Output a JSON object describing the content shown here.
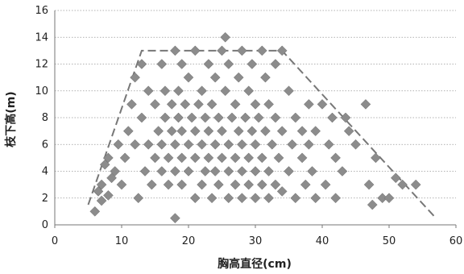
{
  "chart_data": {
    "type": "scatter",
    "xlabel": "胸高直径(cm)",
    "ylabel": "枝下高(m)",
    "xlim": [
      0,
      60
    ],
    "ylim": [
      0,
      16
    ],
    "xticks": [
      "0",
      "10",
      "20",
      "30",
      "40",
      "50",
      "60"
    ],
    "yticks": [
      "0",
      "2",
      "4",
      "6",
      "8",
      "10",
      "12",
      "14",
      "16"
    ],
    "grid": "horizontal dotted",
    "marker": "diamond",
    "marker_color": "#8c8c8c",
    "series": [
      {
        "points": [
          [
            6,
            1
          ],
          [
            6.5,
            2.5
          ],
          [
            7,
            1.8
          ],
          [
            7,
            3
          ],
          [
            7.5,
            4.5
          ],
          [
            8,
            2.2
          ],
          [
            8.5,
            3.5
          ],
          [
            8,
            5
          ],
          [
            9,
            4
          ],
          [
            9.5,
            6
          ],
          [
            10,
            3
          ],
          [
            10.5,
            5
          ],
          [
            11,
            7
          ],
          [
            11.5,
            9
          ],
          [
            12,
            11
          ],
          [
            12.5,
            2
          ],
          [
            12,
            6
          ],
          [
            13,
            8
          ],
          [
            13,
            12
          ],
          [
            13.5,
            4
          ],
          [
            14,
            6
          ],
          [
            14,
            10
          ],
          [
            14.5,
            3
          ],
          [
            15,
            5
          ],
          [
            15,
            9
          ],
          [
            15.5,
            7
          ],
          [
            16,
            4
          ],
          [
            16,
            6
          ],
          [
            16,
            12
          ],
          [
            16.5,
            8
          ],
          [
            16.5,
            10
          ],
          [
            17,
            3
          ],
          [
            17,
            5
          ],
          [
            17.5,
            7
          ],
          [
            17.5,
            9
          ],
          [
            18,
            0.5
          ],
          [
            18,
            4
          ],
          [
            18,
            6
          ],
          [
            18,
            13
          ],
          [
            18.5,
            8
          ],
          [
            18.5,
            10
          ],
          [
            19,
            3
          ],
          [
            19,
            5
          ],
          [
            19,
            7
          ],
          [
            19,
            12
          ],
          [
            19.5,
            9
          ],
          [
            20,
            4
          ],
          [
            20,
            6
          ],
          [
            20,
            11
          ],
          [
            20.5,
            8
          ],
          [
            21,
            2
          ],
          [
            21,
            5
          ],
          [
            21,
            7
          ],
          [
            21,
            13
          ],
          [
            21.5,
            9
          ],
          [
            22,
            3
          ],
          [
            22,
            6
          ],
          [
            22,
            10
          ],
          [
            22.5,
            4
          ],
          [
            22.5,
            8
          ],
          [
            23,
            5
          ],
          [
            23,
            7
          ],
          [
            23,
            12
          ],
          [
            23.5,
            2
          ],
          [
            23.5,
            9
          ],
          [
            24,
            4
          ],
          [
            24,
            6
          ],
          [
            24,
            11
          ],
          [
            24.5,
            3
          ],
          [
            24.5,
            8
          ],
          [
            25,
            5
          ],
          [
            25,
            7
          ],
          [
            25,
            13
          ],
          [
            25.5,
            14
          ],
          [
            25.5,
            10
          ],
          [
            26,
            2
          ],
          [
            26,
            4
          ],
          [
            26,
            6
          ],
          [
            26,
            12
          ],
          [
            26.5,
            8
          ],
          [
            27,
            3
          ],
          [
            27,
            5
          ],
          [
            27,
            9
          ],
          [
            27.5,
            7
          ],
          [
            27.5,
            11
          ],
          [
            28,
            2
          ],
          [
            28,
            4
          ],
          [
            28,
            6
          ],
          [
            28,
            13
          ],
          [
            28.5,
            8
          ],
          [
            29,
            3
          ],
          [
            29,
            5
          ],
          [
            29,
            10
          ],
          [
            29.5,
            7
          ],
          [
            29.5,
            12
          ],
          [
            30,
            2
          ],
          [
            30,
            4
          ],
          [
            30,
            6
          ],
          [
            30,
            9
          ],
          [
            30.5,
            8
          ],
          [
            31,
            3
          ],
          [
            31,
            5
          ],
          [
            31,
            13
          ],
          [
            31.5,
            7
          ],
          [
            31.5,
            11
          ],
          [
            32,
            2
          ],
          [
            32,
            4
          ],
          [
            32,
            9
          ],
          [
            32.5,
            6
          ],
          [
            33,
            3
          ],
          [
            33,
            8
          ],
          [
            33,
            12
          ],
          [
            33.5,
            5
          ],
          [
            34,
            2.5
          ],
          [
            34,
            13
          ],
          [
            34,
            7
          ],
          [
            35,
            4
          ],
          [
            35,
            10
          ],
          [
            35.5,
            6
          ],
          [
            36,
            2
          ],
          [
            36,
            8
          ],
          [
            37,
            5
          ],
          [
            37,
            7
          ],
          [
            37.5,
            3
          ],
          [
            38,
            6
          ],
          [
            38,
            9
          ],
          [
            38.5,
            4
          ],
          [
            39,
            2
          ],
          [
            39,
            7
          ],
          [
            40,
            9
          ],
          [
            40.5,
            3
          ],
          [
            41,
            6
          ],
          [
            41.5,
            8
          ],
          [
            42,
            2
          ],
          [
            42,
            5
          ],
          [
            43,
            4
          ],
          [
            43.5,
            8
          ],
          [
            44,
            7
          ],
          [
            45,
            6
          ],
          [
            46.5,
            9
          ],
          [
            47,
            3
          ],
          [
            47.5,
            1.5
          ],
          [
            48,
            5
          ],
          [
            49,
            2
          ],
          [
            50,
            2
          ],
          [
            51,
            3.5
          ],
          [
            52,
            3
          ],
          [
            54,
            3
          ]
        ]
      }
    ],
    "envelope": [
      [
        5,
        1.5
      ],
      [
        13,
        13
      ],
      [
        34,
        13
      ],
      [
        57,
        0.5
      ]
    ]
  }
}
